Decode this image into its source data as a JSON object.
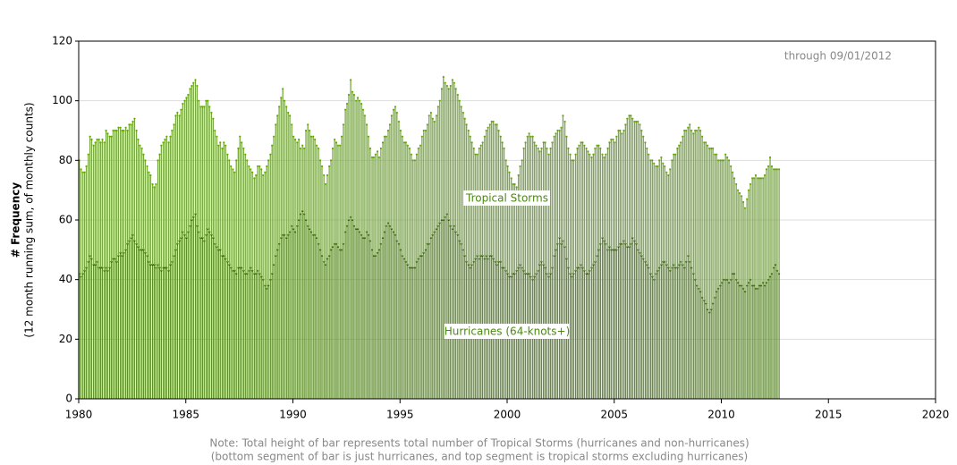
{
  "chart_data": {
    "type": "bar",
    "stacked": true,
    "annotation": "through 09/01/2012",
    "y_label": "# Frequency",
    "y_label_sub": "(12 month running sum, of monthly counts)",
    "note_lines": [
      "Note: Total height of bar represents total number of Tropical Storms (hurricanes and non-hurricanes)",
      "(bottom segment of bar is just hurricanes, and top segment is tropical storms excluding hurricanes)"
    ],
    "xlim": [
      1980,
      2020
    ],
    "xticks": [
      1980,
      1985,
      1990,
      1995,
      2000,
      2005,
      2010,
      2015,
      2020
    ],
    "ylim": [
      0,
      120
    ],
    "yticks": [
      0,
      20,
      40,
      60,
      80,
      100,
      120
    ],
    "grid": true,
    "x": [
      1980,
      1980.08,
      1980.17,
      1980.25,
      1980.33,
      1980.42,
      1980.5,
      1980.58,
      1980.67,
      1980.75,
      1980.83,
      1980.92,
      1981,
      1981.08,
      1981.17,
      1981.25,
      1981.33,
      1981.42,
      1981.5,
      1981.58,
      1981.67,
      1981.75,
      1981.83,
      1981.92,
      1982,
      1982.08,
      1982.17,
      1982.25,
      1982.33,
      1982.42,
      1982.5,
      1982.58,
      1982.67,
      1982.75,
      1982.83,
      1982.92,
      1983,
      1983.08,
      1983.17,
      1983.25,
      1983.33,
      1983.42,
      1983.5,
      1983.58,
      1983.67,
      1983.75,
      1983.83,
      1983.92,
      1984,
      1984.08,
      1984.17,
      1984.25,
      1984.33,
      1984.42,
      1984.5,
      1984.58,
      1984.67,
      1984.75,
      1984.83,
      1984.92,
      1985,
      1985.08,
      1985.17,
      1985.25,
      1985.33,
      1985.42,
      1985.5,
      1985.58,
      1985.67,
      1985.75,
      1985.83,
      1985.92,
      1986,
      1986.08,
      1986.17,
      1986.25,
      1986.33,
      1986.42,
      1986.5,
      1986.58,
      1986.67,
      1986.75,
      1986.83,
      1986.92,
      1987,
      1987.08,
      1987.17,
      1987.25,
      1987.33,
      1987.42,
      1987.5,
      1987.58,
      1987.67,
      1987.75,
      1987.83,
      1987.92,
      1988,
      1988.08,
      1988.17,
      1988.25,
      1988.33,
      1988.42,
      1988.5,
      1988.58,
      1988.67,
      1988.75,
      1988.83,
      1988.92,
      1989,
      1989.08,
      1989.17,
      1989.25,
      1989.33,
      1989.42,
      1989.5,
      1989.58,
      1989.67,
      1989.75,
      1989.83,
      1989.92,
      1990,
      1990.08,
      1990.17,
      1990.25,
      1990.33,
      1990.42,
      1990.5,
      1990.58,
      1990.67,
      1990.75,
      1990.83,
      1990.92,
      1991,
      1991.08,
      1991.17,
      1991.25,
      1991.33,
      1991.42,
      1991.5,
      1991.58,
      1991.67,
      1991.75,
      1991.83,
      1991.92,
      1992,
      1992.08,
      1992.17,
      1992.25,
      1992.33,
      1992.42,
      1992.5,
      1992.58,
      1992.67,
      1992.75,
      1992.83,
      1992.92,
      1993,
      1993.08,
      1993.17,
      1993.25,
      1993.33,
      1993.42,
      1993.5,
      1993.58,
      1993.67,
      1993.75,
      1993.83,
      1993.92,
      1994,
      1994.08,
      1994.17,
      1994.25,
      1994.33,
      1994.42,
      1994.5,
      1994.58,
      1994.67,
      1994.75,
      1994.83,
      1994.92,
      1995,
      1995.08,
      1995.17,
      1995.25,
      1995.33,
      1995.42,
      1995.5,
      1995.58,
      1995.67,
      1995.75,
      1995.83,
      1995.92,
      1996,
      1996.08,
      1996.17,
      1996.25,
      1996.33,
      1996.42,
      1996.5,
      1996.58,
      1996.67,
      1996.75,
      1996.83,
      1996.92,
      1997,
      1997.08,
      1997.17,
      1997.25,
      1997.33,
      1997.42,
      1997.5,
      1997.58,
      1997.67,
      1997.75,
      1997.83,
      1997.92,
      1998,
      1998.08,
      1998.17,
      1998.25,
      1998.33,
      1998.42,
      1998.5,
      1998.58,
      1998.67,
      1998.75,
      1998.83,
      1998.92,
      1999,
      1999.08,
      1999.17,
      1999.25,
      1999.33,
      1999.42,
      1999.5,
      1999.58,
      1999.67,
      1999.75,
      1999.83,
      1999.92,
      2000,
      2000.08,
      2000.17,
      2000.25,
      2000.33,
      2000.42,
      2000.5,
      2000.58,
      2000.67,
      2000.75,
      2000.83,
      2000.92,
      2001,
      2001.08,
      2001.17,
      2001.25,
      2001.33,
      2001.42,
      2001.5,
      2001.58,
      2001.67,
      2001.75,
      2001.83,
      2001.92,
      2002,
      2002.08,
      2002.17,
      2002.25,
      2002.33,
      2002.42,
      2002.5,
      2002.58,
      2002.67,
      2002.75,
      2002.83,
      2002.92,
      2003,
      2003.08,
      2003.17,
      2003.25,
      2003.33,
      2003.42,
      2003.5,
      2003.58,
      2003.67,
      2003.75,
      2003.83,
      2003.92,
      2004,
      2004.08,
      2004.17,
      2004.25,
      2004.33,
      2004.42,
      2004.5,
      2004.58,
      2004.67,
      2004.75,
      2004.83,
      2004.92,
      2005,
      2005.08,
      2005.17,
      2005.25,
      2005.33,
      2005.42,
      2005.5,
      2005.58,
      2005.67,
      2005.75,
      2005.83,
      2005.92,
      2006,
      2006.08,
      2006.17,
      2006.25,
      2006.33,
      2006.42,
      2006.5,
      2006.58,
      2006.67,
      2006.75,
      2006.83,
      2006.92,
      2007,
      2007.08,
      2007.17,
      2007.25,
      2007.33,
      2007.42,
      2007.5,
      2007.58,
      2007.67,
      2007.75,
      2007.83,
      2007.92,
      2008,
      2008.08,
      2008.17,
      2008.25,
      2008.33,
      2008.42,
      2008.5,
      2008.58,
      2008.67,
      2008.75,
      2008.83,
      2008.92,
      2009,
      2009.08,
      2009.17,
      2009.25,
      2009.33,
      2009.42,
      2009.5,
      2009.58,
      2009.67,
      2009.75,
      2009.83,
      2009.92,
      2010,
      2010.08,
      2010.17,
      2010.25,
      2010.33,
      2010.42,
      2010.5,
      2010.58,
      2010.67,
      2010.75,
      2010.83,
      2010.92,
      2011,
      2011.08,
      2011.17,
      2011.25,
      2011.33,
      2011.42,
      2011.5,
      2011.58,
      2011.67,
      2011.75,
      2011.83,
      2011.92,
      2012,
      2012.08,
      2012.17,
      2012.25,
      2012.33,
      2012.42,
      2012.5,
      2012.58,
      2012.67
    ],
    "series": [
      {
        "name": "Hurricanes (64-knots+)",
        "color": "#5f8f2a",
        "marker_color": "#2f5a00",
        "values": [
          42,
          41,
          42,
          43,
          44,
          46,
          48,
          47,
          45,
          45,
          46,
          44,
          44,
          44,
          43,
          44,
          43,
          44,
          46,
          47,
          47,
          46,
          48,
          49,
          48,
          49,
          50,
          52,
          53,
          54,
          55,
          53,
          52,
          51,
          50,
          50,
          50,
          49,
          48,
          46,
          45,
          45,
          45,
          44,
          45,
          44,
          43,
          44,
          44,
          44,
          43,
          45,
          46,
          48,
          50,
          52,
          53,
          54,
          56,
          55,
          54,
          56,
          58,
          60,
          61,
          62,
          58,
          56,
          54,
          54,
          53,
          55,
          57,
          56,
          55,
          54,
          52,
          51,
          50,
          50,
          48,
          48,
          47,
          46,
          45,
          44,
          43,
          43,
          42,
          44,
          44,
          44,
          43,
          42,
          42,
          43,
          44,
          43,
          42,
          42,
          43,
          42,
          41,
          40,
          38,
          37,
          38,
          40,
          42,
          45,
          48,
          50,
          52,
          54,
          55,
          55,
          54,
          55,
          56,
          58,
          57,
          56,
          58,
          60,
          62,
          63,
          62,
          60,
          58,
          57,
          56,
          55,
          55,
          54,
          52,
          50,
          48,
          46,
          45,
          47,
          48,
          50,
          51,
          52,
          52,
          51,
          50,
          50,
          52,
          56,
          58,
          60,
          61,
          60,
          58,
          57,
          57,
          56,
          55,
          54,
          54,
          56,
          55,
          53,
          50,
          48,
          48,
          49,
          50,
          52,
          54,
          56,
          58,
          59,
          58,
          57,
          56,
          55,
          53,
          52,
          50,
          48,
          47,
          46,
          45,
          44,
          44,
          44,
          44,
          46,
          47,
          48,
          48,
          49,
          50,
          52,
          52,
          54,
          55,
          56,
          57,
          58,
          59,
          60,
          60,
          61,
          62,
          60,
          58,
          57,
          58,
          56,
          55,
          53,
          52,
          50,
          48,
          46,
          45,
          44,
          45,
          46,
          47,
          48,
          47,
          48,
          48,
          47,
          48,
          47,
          48,
          48,
          47,
          46,
          45,
          46,
          46,
          44,
          44,
          43,
          42,
          41,
          41,
          42,
          42,
          43,
          44,
          45,
          44,
          43,
          42,
          42,
          42,
          41,
          40,
          41,
          42,
          43,
          45,
          46,
          45,
          44,
          42,
          41,
          42,
          44,
          48,
          50,
          52,
          54,
          52,
          53,
          51,
          47,
          44,
          42,
          41,
          42,
          43,
          44,
          44,
          45,
          44,
          43,
          42,
          42,
          43,
          44,
          45,
          46,
          48,
          50,
          52,
          54,
          53,
          52,
          50,
          51,
          50,
          50,
          50,
          50,
          51,
          52,
          52,
          53,
          52,
          51,
          51,
          52,
          54,
          53,
          52,
          50,
          49,
          48,
          47,
          46,
          45,
          44,
          42,
          41,
          40,
          42,
          43,
          44,
          45,
          46,
          46,
          45,
          44,
          43,
          44,
          45,
          44,
          44,
          45,
          46,
          45,
          44,
          46,
          48,
          46,
          44,
          42,
          40,
          38,
          37,
          36,
          34,
          33,
          32,
          30,
          29,
          30,
          32,
          34,
          36,
          37,
          38,
          39,
          40,
          40,
          40,
          39,
          40,
          42,
          42,
          40,
          39,
          38,
          38,
          37,
          36,
          38,
          39,
          40,
          38,
          38,
          37,
          37,
          38,
          38,
          39,
          38,
          39,
          40,
          41,
          42,
          44,
          45,
          43,
          42
        ]
      },
      {
        "name": "Tropical Storms",
        "color": "#7aa845",
        "marker_color": "#66aa00",
        "values": [
          38,
          36,
          34,
          33,
          34,
          36,
          40,
          40,
          40,
          41,
          41,
          43,
          42,
          43,
          43,
          46,
          46,
          44,
          42,
          43,
          43,
          44,
          43,
          42,
          42,
          41,
          41,
          38,
          39,
          38,
          38,
          41,
          38,
          36,
          35,
          34,
          32,
          31,
          30,
          30,
          30,
          27,
          26,
          28,
          35,
          38,
          42,
          42,
          43,
          44,
          43,
          43,
          44,
          44,
          45,
          44,
          42,
          43,
          43,
          45,
          47,
          46,
          46,
          45,
          45,
          45,
          47,
          44,
          44,
          44,
          45,
          45,
          43,
          42,
          41,
          40,
          38,
          37,
          35,
          36,
          36,
          38,
          38,
          36,
          35,
          34,
          34,
          33,
          38,
          40,
          44,
          42,
          41,
          40,
          38,
          35,
          33,
          33,
          32,
          33,
          35,
          36,
          36,
          35,
          38,
          41,
          42,
          42,
          43,
          43,
          44,
          45,
          46,
          47,
          49,
          45,
          44,
          41,
          39,
          34,
          31,
          31,
          28,
          27,
          22,
          22,
          22,
          30,
          34,
          33,
          32,
          33,
          32,
          31,
          32,
          30,
          30,
          29,
          27,
          28,
          30,
          30,
          33,
          35,
          34,
          34,
          35,
          38,
          40,
          41,
          41,
          42,
          46,
          43,
          44,
          43,
          44,
          44,
          44,
          43,
          41,
          36,
          33,
          31,
          31,
          33,
          34,
          34,
          31,
          32,
          32,
          32,
          30,
          31,
          34,
          38,
          41,
          43,
          43,
          41,
          40,
          40,
          39,
          40,
          40,
          40,
          38,
          36,
          36,
          36,
          37,
          37,
          40,
          41,
          40,
          40,
          43,
          42,
          39,
          37,
          38,
          40,
          41,
          44,
          48,
          45,
          43,
          44,
          47,
          50,
          48,
          48,
          47,
          47,
          46,
          46,
          46,
          46,
          45,
          44,
          41,
          38,
          35,
          34,
          37,
          37,
          38,
          41,
          42,
          44,
          44,
          45,
          46,
          46,
          47,
          44,
          42,
          42,
          40,
          37,
          36,
          35,
          33,
          30,
          30,
          28,
          31,
          33,
          36,
          41,
          44,
          46,
          47,
          47,
          48,
          45,
          43,
          41,
          38,
          38,
          41,
          42,
          42,
          41,
          42,
          42,
          40,
          39,
          38,
          36,
          39,
          42,
          42,
          41,
          40,
          40,
          39,
          38,
          39,
          40,
          41,
          41,
          42,
          42,
          42,
          41,
          39,
          37,
          37,
          38,
          37,
          35,
          32,
          28,
          28,
          30,
          34,
          35,
          37,
          37,
          36,
          38,
          39,
          38,
          37,
          37,
          40,
          43,
          44,
          43,
          40,
          40,
          41,
          43,
          43,
          42,
          41,
          40,
          39,
          38,
          38,
          39,
          39,
          36,
          35,
          36,
          36,
          33,
          32,
          31,
          31,
          34,
          36,
          37,
          38,
          40,
          40,
          40,
          43,
          46,
          44,
          43,
          46,
          46,
          47,
          50,
          52,
          54,
          54,
          54,
          53,
          54,
          55,
          55,
          54,
          52,
          48,
          46,
          43,
          42,
          41,
          40,
          42,
          41,
          41,
          38,
          34,
          32,
          32,
          31,
          31,
          30,
          29,
          28,
          29,
          31,
          32,
          36,
          36,
          38,
          37,
          36,
          36,
          35,
          37,
          38,
          38,
          40,
          36,
          33,
          32,
          34,
          35
        ]
      }
    ]
  }
}
